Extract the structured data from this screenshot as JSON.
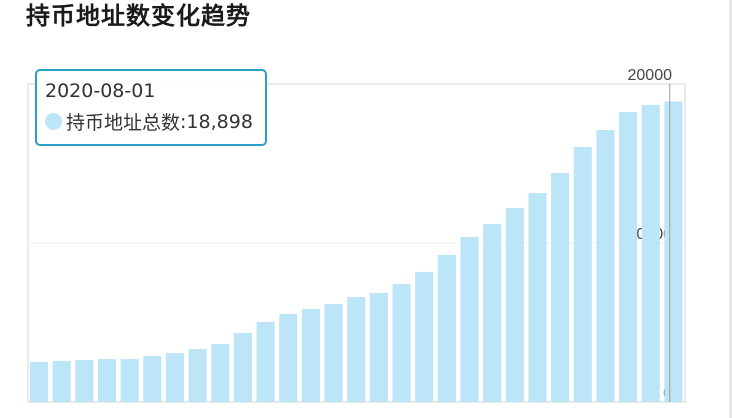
{
  "title": "持币地址数变化趋势",
  "tooltip": {
    "date": "2020-08-01",
    "series_label": "持币地址总数",
    "value_text": "18,898"
  },
  "colors": {
    "bar": "#bde5f8",
    "tooltip_border": "#2b9fc4",
    "axis_line": "#999999"
  },
  "chart_data": {
    "type": "bar",
    "series": [
      {
        "name": "持币地址总数",
        "values": [
          2520,
          2580,
          2640,
          2700,
          2700,
          2890,
          3080,
          3330,
          3650,
          4340,
          5030,
          5530,
          5850,
          6160,
          6600,
          6860,
          7420,
          8180,
          9250,
          10380,
          11190,
          12200,
          13140,
          14400,
          16040,
          17110,
          18240,
          18680,
          18898
        ]
      }
    ],
    "ylim": [
      0,
      20000
    ],
    "yticks": [
      "0",
      "10000",
      "20000"
    ],
    "yaxis_position": "right",
    "grid": true,
    "highlighted_index": 28
  }
}
